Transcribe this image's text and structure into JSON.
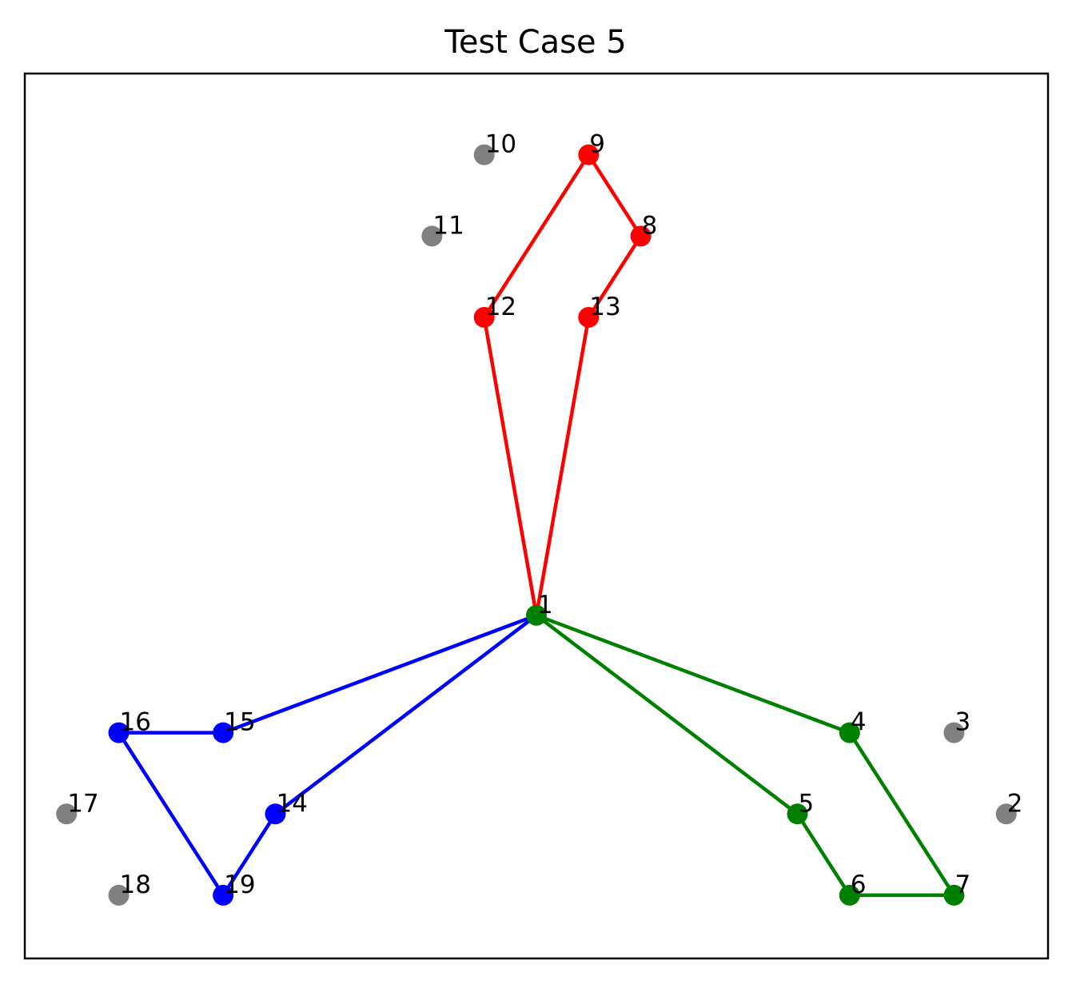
{
  "chart_data": {
    "type": "scatter",
    "title": "Test Case 5",
    "xlabel": "",
    "ylabel": "",
    "xlim": [
      -4.9,
      4.9
    ],
    "ylim": [
      -3.8,
      6.0
    ],
    "grid": false,
    "axis_ticks": false,
    "colors": {
      "unvisited": "#808080",
      "red": "#ff0000",
      "green": "#008000",
      "blue": "#0000ff"
    },
    "nodes": [
      {
        "id": "1",
        "x": 0.0,
        "y": 0.0,
        "group": "green"
      },
      {
        "id": "2",
        "x": 4.5,
        "y": -2.2,
        "group": "unvisited"
      },
      {
        "id": "3",
        "x": 4.0,
        "y": -1.3,
        "group": "unvisited"
      },
      {
        "id": "4",
        "x": 3.0,
        "y": -1.3,
        "group": "green"
      },
      {
        "id": "5",
        "x": 2.5,
        "y": -2.2,
        "group": "green"
      },
      {
        "id": "6",
        "x": 3.0,
        "y": -3.1,
        "group": "green"
      },
      {
        "id": "7",
        "x": 4.0,
        "y": -3.1,
        "group": "green"
      },
      {
        "id": "8",
        "x": 1.0,
        "y": 4.2,
        "group": "red"
      },
      {
        "id": "9",
        "x": 0.5,
        "y": 5.1,
        "group": "red"
      },
      {
        "id": "10",
        "x": -0.5,
        "y": 5.1,
        "group": "unvisited"
      },
      {
        "id": "11",
        "x": -1.0,
        "y": 4.2,
        "group": "unvisited"
      },
      {
        "id": "12",
        "x": -0.5,
        "y": 3.3,
        "group": "red"
      },
      {
        "id": "13",
        "x": 0.5,
        "y": 3.3,
        "group": "red"
      },
      {
        "id": "14",
        "x": -2.5,
        "y": -2.2,
        "group": "blue"
      },
      {
        "id": "15",
        "x": -3.0,
        "y": -1.3,
        "group": "blue"
      },
      {
        "id": "16",
        "x": -4.0,
        "y": -1.3,
        "group": "blue"
      },
      {
        "id": "17",
        "x": -4.5,
        "y": -2.2,
        "group": "unvisited"
      },
      {
        "id": "18",
        "x": -4.0,
        "y": -3.1,
        "group": "unvisited"
      },
      {
        "id": "19",
        "x": -3.0,
        "y": -3.1,
        "group": "blue"
      }
    ],
    "routes": [
      {
        "color": "red",
        "path": [
          "1",
          "12",
          "9",
          "8",
          "13",
          "1"
        ]
      },
      {
        "color": "green",
        "path": [
          "1",
          "4",
          "7",
          "6",
          "5",
          "1"
        ]
      },
      {
        "color": "blue",
        "path": [
          "1",
          "15",
          "16",
          "19",
          "14",
          "1"
        ]
      }
    ]
  }
}
